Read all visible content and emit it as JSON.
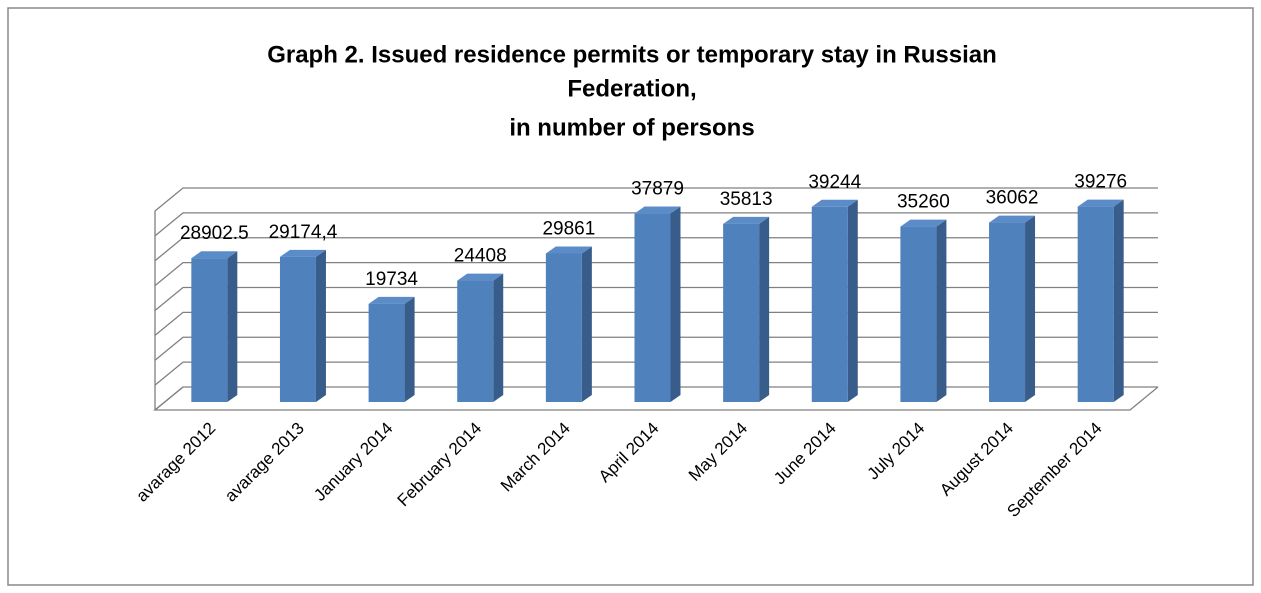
{
  "chart_data": {
    "type": "bar3d",
    "title": [
      "Graph 2. Issued residence permits or temporary stay in Russian",
      "Federation,",
      "in number of persons"
    ],
    "categories": [
      "avarage 2012",
      "avarage 2013",
      "January 2014",
      "February 2014",
      "March 2014",
      "April 2014",
      "May 2014",
      "June 2014",
      "July 2014",
      "August 2014",
      "September 2014"
    ],
    "values": [
      28902.5,
      29174.4,
      19734,
      24408,
      29861,
      37879,
      35813,
      39244,
      35260,
      36062,
      39276
    ],
    "value_labels": [
      "28902.5",
      "29174,4",
      "19734",
      "24408",
      "29861",
      "37879",
      "35813",
      "39244",
      "35260",
      "36062",
      "39276"
    ],
    "color": "#4f81bd",
    "ylim": [
      0,
      40000
    ],
    "yticks": [
      0,
      5000,
      10000,
      15000,
      20000,
      25000,
      30000,
      35000,
      40000
    ],
    "grid": true
  }
}
